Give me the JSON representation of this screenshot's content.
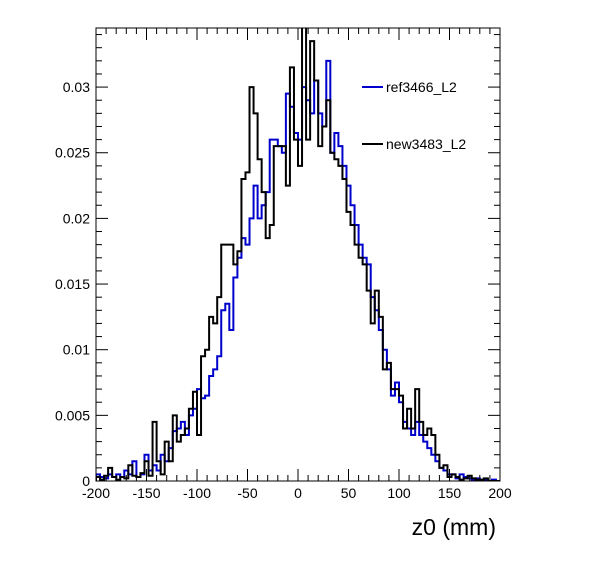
{
  "chart_data": {
    "type": "line",
    "title": "",
    "xlabel": "z0 (mm)",
    "ylabel": "",
    "xlim": [
      -200,
      200
    ],
    "ylim": [
      0,
      0.0345
    ],
    "x_ticks": [
      -200,
      -150,
      -100,
      -50,
      0,
      50,
      100,
      150,
      200
    ],
    "y_ticks": [
      0,
      0.005,
      0.01,
      0.015,
      0.02,
      0.025,
      0.03
    ],
    "y_tick_labels": [
      "0",
      "0.005",
      "0.01",
      "0.015",
      "0.02",
      "0.025",
      "0.03"
    ],
    "grid": false,
    "legend_position": "top-right",
    "bin_edges_start": -200,
    "bin_width": 4,
    "series": [
      {
        "name": "ref3466_L2",
        "color": "#0000cc",
        "values": [
          0.0005,
          0.0003,
          0.0002,
          0.0005,
          0.0003,
          0.0005,
          0.0003,
          0.0008,
          0.0005,
          0.0015,
          0.0003,
          0.0005,
          0.002,
          0.0008,
          0.0012,
          0.0008,
          0.002,
          0.0015,
          0.0025,
          0.0038,
          0.004,
          0.0045,
          0.0035,
          0.005,
          0.0055,
          0.007,
          0.0063,
          0.0065,
          0.008,
          0.0085,
          0.0095,
          0.013,
          0.0135,
          0.0115,
          0.0155,
          0.017,
          0.0185,
          0.018,
          0.02,
          0.0225,
          0.02,
          0.021,
          0.022,
          0.026,
          0.026,
          0.0255,
          0.025,
          0.0295,
          0.0285,
          0.0265,
          0.026,
          0.03,
          0.029,
          0.028,
          0.0305,
          0.028,
          0.027,
          0.032,
          0.025,
          0.0265,
          0.0255,
          0.024,
          0.0225,
          0.021,
          0.0195,
          0.018,
          0.017,
          0.0165,
          0.014,
          0.013,
          0.0115,
          0.01,
          0.0085,
          0.0065,
          0.0075,
          0.006,
          0.0045,
          0.004,
          0.0035,
          0.0045,
          0.0035,
          0.003,
          0.0025,
          0.002,
          0.0015,
          0.001,
          0.0008,
          0.0005,
          0.0005,
          0.0002,
          0.0005,
          0.0003,
          0.0002,
          0.0001,
          0.0002,
          0.0001,
          0.0001,
          0.0,
          0.0001,
          0.0
        ]
      },
      {
        "name": "new3483_L2",
        "color": "#000000",
        "values": [
          0.0003,
          0.0001,
          0.0004,
          0.001,
          0.0003,
          0.0001,
          0.0003,
          0.0002,
          0.0012,
          0.0004,
          0.0003,
          0.0006,
          0.0015,
          0.0004,
          0.0045,
          0.0015,
          0.0005,
          0.003,
          0.0015,
          0.005,
          0.003,
          0.0035,
          0.004,
          0.0055,
          0.0068,
          0.0035,
          0.0095,
          0.01,
          0.0125,
          0.012,
          0.014,
          0.018,
          0.018,
          0.018,
          0.0165,
          0.0175,
          0.023,
          0.0235,
          0.03,
          0.028,
          0.0245,
          0.022,
          0.0185,
          0.0195,
          0.0255,
          0.0255,
          0.0255,
          0.0225,
          0.0315,
          0.026,
          0.024,
          0.037,
          0.026,
          0.0335,
          0.0305,
          0.0255,
          0.027,
          0.029,
          0.025,
          0.0245,
          0.024,
          0.023,
          0.0205,
          0.0195,
          0.018,
          0.017,
          0.0165,
          0.0145,
          0.012,
          0.0145,
          0.0125,
          0.0085,
          0.009,
          0.007,
          0.007,
          0.0065,
          0.004,
          0.0055,
          0.004,
          0.007,
          0.0045,
          0.0035,
          0.004,
          0.0035,
          0.002,
          0.001,
          0.0012,
          0.0003,
          0.0005,
          0.0003,
          0.0001,
          0.0002,
          0.0004,
          0.0002,
          0.0001,
          0.0001,
          0.0002,
          0.0,
          0.0,
          0.0
        ]
      }
    ]
  }
}
